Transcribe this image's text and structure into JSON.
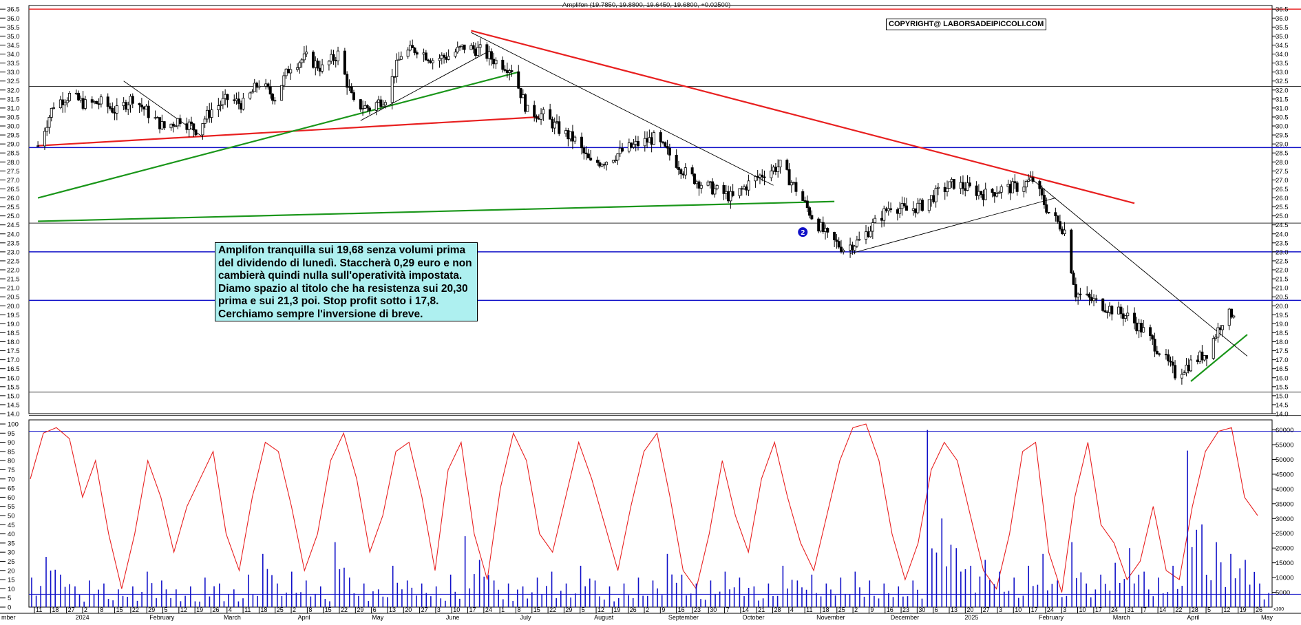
{
  "quote_title": "Amplifon (19.7850, 19.8800, 19.6450, 19.6800, +0.02500)",
  "copyright": "COPYRIGHT@ LABORSADEIPICCOLI.COM",
  "note": {
    "lines": [
      "Amplifon tranquilla sui 19,68 senza volumi prima",
      "del dividendo di lunedì. Staccherà 0,29 euro e non",
      "cambierà quindi nulla sull'operatività impostata.",
      "Diamo spazio al titolo che ha resistenza sui 20,30",
      "prima e sui 21,3 poi. Stop profit sotto i 17,8.",
      "Cerchiamo sempre l'inversione di breve."
    ]
  },
  "marker_badge": "2",
  "colors": {
    "red": "#e82020",
    "green": "#1a961a",
    "blue": "#1010c8",
    "candle": "#000000",
    "note_bg": "#aef0f0"
  },
  "chart_data": [
    {
      "type": "candlestick",
      "title": "Amplifon",
      "last_quote": {
        "open": 19.785,
        "high": 19.88,
        "low": 19.645,
        "close": 19.68,
        "change": 0.025
      },
      "y_ticks": [
        "14.0",
        "14.5",
        "15.0",
        "15.5",
        "16.0",
        "16.5",
        "17.0",
        "17.5",
        "18.0",
        "18.5",
        "19.0",
        "19.5",
        "20.0",
        "20.5",
        "21.0",
        "21.5",
        "22.0",
        "22.5",
        "23.0",
        "23.5",
        "24.0",
        "24.5",
        "25.0",
        "25.5",
        "26.0",
        "26.5",
        "27.0",
        "27.5",
        "28.0",
        "28.5",
        "29.0",
        "29.5",
        "30.0",
        "30.5",
        "31.0",
        "31.5",
        "32.0",
        "32.5",
        "33.0",
        "33.5",
        "34.0",
        "34.5",
        "35.0",
        "35.5",
        "36.0",
        "36.5"
      ],
      "ylim": [
        14.0,
        36.7
      ],
      "horizontal_levels": {
        "blue": [
          28.8,
          23.0,
          20.3
        ],
        "black": [
          32.2,
          24.6,
          15.2,
          13.9
        ],
        "red": [
          36.5
        ]
      },
      "trend_lines": [
        {
          "color": "red",
          "from": [
            "2023-12-01",
            28.9
          ],
          "to": [
            "2024-07-10",
            30.5
          ]
        },
        {
          "color": "red",
          "from": [
            "2024-06-10",
            35.3
          ],
          "to": [
            "2025-03-31",
            25.7
          ]
        },
        {
          "color": "green",
          "from": [
            "2023-12-01",
            26.0
          ],
          "to": [
            "2024-07-01",
            33.0
          ]
        },
        {
          "color": "green",
          "from": [
            "2023-12-01",
            24.7
          ],
          "to": [
            "2024-11-18",
            25.8
          ]
        },
        {
          "color": "green",
          "from": [
            "2025-04-25",
            15.8
          ],
          "to": [
            "2025-05-20",
            18.4
          ]
        },
        {
          "color": "black",
          "from": [
            "2024-01-08",
            32.5
          ],
          "to": [
            "2024-02-12",
            29.4
          ]
        },
        {
          "color": "black",
          "from": [
            "2024-04-22",
            30.3
          ],
          "to": [
            "2024-06-17",
            34.1
          ]
        },
        {
          "color": "black",
          "from": [
            "2024-06-10",
            35.2
          ],
          "to": [
            "2024-10-22",
            26.7
          ]
        },
        {
          "color": "black",
          "from": [
            "2024-11-25",
            22.9
          ],
          "to": [
            "2025-02-24",
            26.0
          ]
        },
        {
          "color": "black",
          "from": [
            "2025-02-13",
            27.1
          ],
          "to": [
            "2025-05-20",
            17.2
          ]
        }
      ],
      "series": [
        {
          "name": "Amplifon",
          "points": [
            [
              "2023-12-01",
              28.9
            ],
            [
              "2023-12-08",
              31.2
            ],
            [
              "2023-12-15",
              31.7
            ],
            [
              "2023-12-22",
              31.2
            ],
            [
              "2023-12-29",
              31.3
            ],
            [
              "2024-01-05",
              30.8
            ],
            [
              "2024-01-12",
              31.6
            ],
            [
              "2024-01-19",
              30.7
            ],
            [
              "2024-01-26",
              29.9
            ],
            [
              "2024-02-02",
              30.4
            ],
            [
              "2024-02-09",
              29.8
            ],
            [
              "2024-02-16",
              30.9
            ],
            [
              "2024-02-23",
              31.5
            ],
            [
              "2024-03-01",
              31.2
            ],
            [
              "2024-03-08",
              32.4
            ],
            [
              "2024-03-15",
              31.6
            ],
            [
              "2024-03-22",
              33.4
            ],
            [
              "2024-03-29",
              33.8
            ],
            [
              "2024-04-05",
              33.2
            ],
            [
              "2024-04-12",
              34.0
            ],
            [
              "2024-04-19",
              31.2
            ],
            [
              "2024-04-26",
              31.0
            ],
            [
              "2024-05-03",
              31.6
            ],
            [
              "2024-05-10",
              34.0
            ],
            [
              "2024-05-17",
              34.3
            ],
            [
              "2024-05-24",
              33.7
            ],
            [
              "2024-05-31",
              33.9
            ],
            [
              "2024-06-07",
              34.4
            ],
            [
              "2024-06-14",
              34.2
            ],
            [
              "2024-06-21",
              33.6
            ],
            [
              "2024-06-28",
              33.2
            ],
            [
              "2024-07-05",
              30.8
            ],
            [
              "2024-07-12",
              30.6
            ],
            [
              "2024-07-19",
              29.8
            ],
            [
              "2024-07-26",
              29.2
            ],
            [
              "2024-08-02",
              27.9
            ],
            [
              "2024-08-09",
              28.1
            ],
            [
              "2024-08-16",
              28.6
            ],
            [
              "2024-08-23",
              29.0
            ],
            [
              "2024-08-30",
              29.3
            ],
            [
              "2024-09-06",
              28.4
            ],
            [
              "2024-09-13",
              27.4
            ],
            [
              "2024-09-20",
              26.8
            ],
            [
              "2024-09-27",
              26.4
            ],
            [
              "2024-10-04",
              26.0
            ],
            [
              "2024-10-11",
              26.8
            ],
            [
              "2024-10-18",
              27.4
            ],
            [
              "2024-10-25",
              27.8
            ],
            [
              "2024-11-01",
              26.5
            ],
            [
              "2024-11-08",
              25.0
            ],
            [
              "2024-11-15",
              23.8
            ],
            [
              "2024-11-22",
              23.2
            ],
            [
              "2024-11-29",
              23.6
            ],
            [
              "2024-12-06",
              24.6
            ],
            [
              "2024-12-13",
              25.6
            ],
            [
              "2024-12-20",
              25.3
            ],
            [
              "2024-12-27",
              25.6
            ],
            [
              "2025-01-03",
              26.3
            ],
            [
              "2025-01-10",
              26.8
            ],
            [
              "2025-01-17",
              26.5
            ],
            [
              "2025-01-24",
              26.2
            ],
            [
              "2025-01-31",
              26.5
            ],
            [
              "2025-02-07",
              26.6
            ],
            [
              "2025-02-14",
              27.0
            ],
            [
              "2025-02-21",
              25.2
            ],
            [
              "2025-02-28",
              24.2
            ],
            [
              "2025-03-05",
              20.7
            ],
            [
              "2025-03-14",
              20.2
            ],
            [
              "2025-03-21",
              19.8
            ],
            [
              "2025-03-28",
              19.4
            ],
            [
              "2025-04-04",
              18.6
            ],
            [
              "2025-04-11",
              17.5
            ],
            [
              "2025-04-18",
              16.2
            ],
            [
              "2025-04-25",
              16.8
            ],
            [
              "2025-05-02",
              17.4
            ],
            [
              "2025-05-09",
              19.2
            ],
            [
              "2025-05-14",
              19.68
            ]
          ]
        }
      ]
    },
    {
      "type": "line+bar",
      "title": "",
      "oscillator_ticks": [
        "0",
        "5",
        "10",
        "15",
        "20",
        "25",
        "30",
        "35",
        "40",
        "45",
        "50",
        "55",
        "60",
        "65",
        "70",
        "75",
        "80",
        "85",
        "90",
        "95",
        "100"
      ],
      "oscillator_levels": [
        96,
        7
      ],
      "volume_ticks": [
        "5000",
        "10000",
        "15000",
        "20000",
        "25000",
        "30000",
        "35000",
        "40000",
        "45000",
        "50000",
        "55000",
        "60000"
      ],
      "scale_tag": "x100",
      "series": [
        {
          "name": "oscillator",
          "color": "red",
          "values": [
            70,
            95,
            98,
            92,
            60,
            80,
            40,
            10,
            40,
            80,
            60,
            30,
            55,
            70,
            85,
            40,
            20,
            60,
            90,
            85,
            55,
            20,
            40,
            80,
            95,
            70,
            30,
            50,
            85,
            90,
            60,
            20,
            75,
            90,
            40,
            15,
            65,
            95,
            80,
            40,
            30,
            60,
            90,
            70,
            45,
            20,
            55,
            85,
            95,
            60,
            20,
            10,
            40,
            80,
            50,
            30,
            70,
            90,
            60,
            35,
            20,
            50,
            80,
            98,
            100,
            80,
            40,
            15,
            35,
            75,
            90,
            80,
            50,
            20,
            10,
            40,
            85,
            90,
            30,
            8,
            60,
            90,
            45,
            35,
            15,
            25,
            55,
            20,
            15,
            55,
            85,
            96,
            98,
            60,
            50
          ]
        },
        {
          "name": "volume",
          "color": "blue",
          "values": [
            10000,
            17000,
            11000,
            7000,
            9000,
            8000,
            6000,
            7000,
            12000,
            9000,
            6000,
            7000,
            10000,
            8000,
            6000,
            11000,
            18000,
            8000,
            12000,
            9000,
            7000,
            22000,
            10000,
            8000,
            6000,
            14000,
            9000,
            8000,
            7000,
            11000,
            24000,
            16000,
            9000,
            8000,
            7000,
            10000,
            12000,
            8000,
            14000,
            9000,
            7000,
            8000,
            10000,
            9000,
            18000,
            11000,
            8000,
            9000,
            12000,
            10000,
            7000,
            8000,
            14000,
            9000,
            11000,
            8000,
            10000,
            12000,
            9000,
            8000,
            7000,
            9000,
            60000,
            30000,
            20000,
            14000,
            16000,
            12000,
            10000,
            14000,
            18000,
            9000,
            22000,
            8000,
            11000,
            15000,
            20000,
            12000,
            10000,
            14000,
            53000,
            28000,
            22000,
            18000,
            16000,
            8000
          ]
        }
      ]
    }
  ],
  "x_axis": {
    "day_ticks": [
      "11",
      "18",
      "27",
      "2",
      "8",
      "15",
      "22",
      "29",
      "5",
      "12",
      "19",
      "26",
      "4",
      "11",
      "18",
      "25",
      "2",
      "8",
      "15",
      "22",
      "29",
      "6",
      "13",
      "20",
      "27",
      "3",
      "10",
      "17",
      "24",
      "1",
      "8",
      "15",
      "22",
      "29",
      "5",
      "12",
      "19",
      "26",
      "2",
      "9",
      "16",
      "23",
      "30",
      "7",
      "14",
      "21",
      "28",
      "4",
      "11",
      "18",
      "25",
      "2",
      "9",
      "16",
      "23",
      "30",
      "6",
      "13",
      "20",
      "27",
      "3",
      "10",
      "17",
      "24",
      "3",
      "10",
      "17",
      "24",
      "31",
      "7",
      "14",
      "22",
      "28",
      "5",
      "12",
      "19",
      "26"
    ],
    "month_labels": [
      "mber",
      "2024",
      "February",
      "March",
      "April",
      "May",
      "June",
      "July",
      "August",
      "September",
      "October",
      "November",
      "December",
      "2025",
      "February",
      "March",
      "April",
      "May"
    ]
  }
}
